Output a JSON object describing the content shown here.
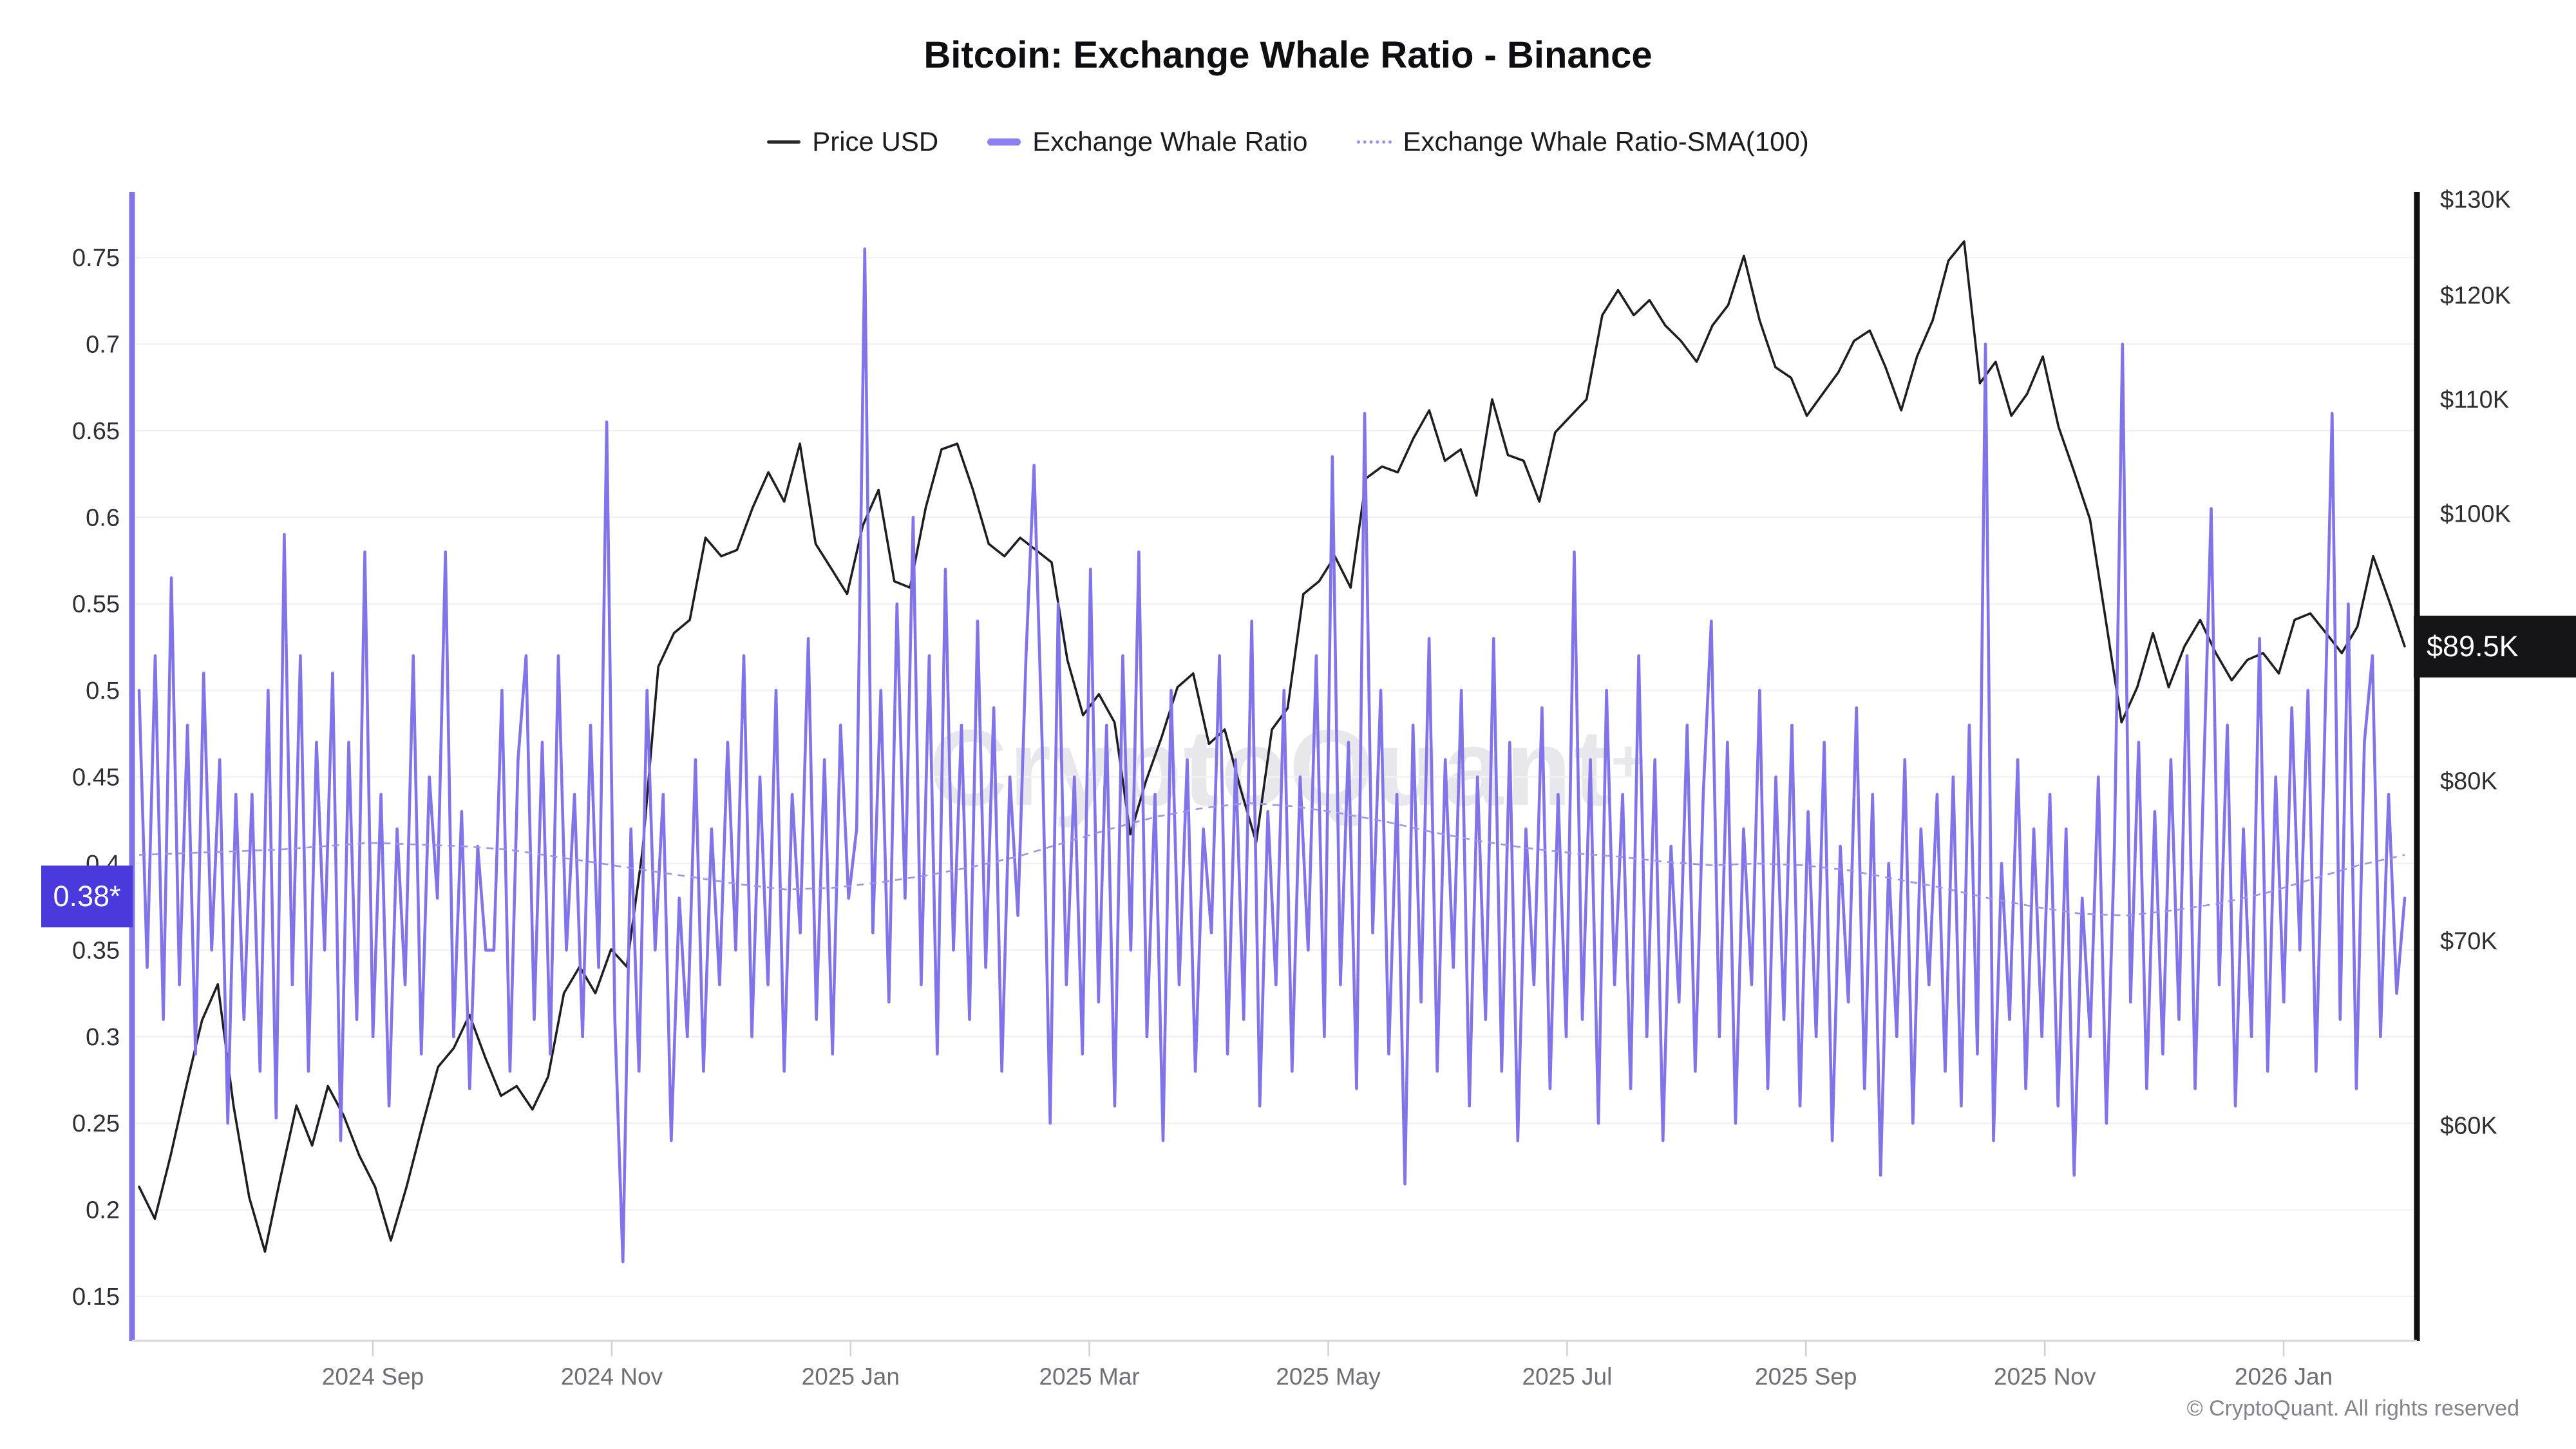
{
  "title": "Bitcoin: Exchange Whale Ratio - Binance",
  "legend": {
    "items": [
      {
        "label": "Price USD",
        "color": "#26262c",
        "style": "solid-thin"
      },
      {
        "label": "Exchange Whale Ratio",
        "color": "#8c7ff0",
        "style": "solid-thick"
      },
      {
        "label": "Exchange Whale Ratio-SMA(100)",
        "color": "#9d92f2",
        "style": "dotted"
      }
    ]
  },
  "watermark": {
    "text": "CryptoQuant",
    "mark": "+"
  },
  "copyright": "© CryptoQuant. All rights reserved",
  "badges": {
    "ratio_last": {
      "text": "0.38*",
      "value": 0.38,
      "bg": "#4a39dd"
    },
    "price_last": {
      "text": "$89.5K",
      "value_usd_k": 89.5,
      "bg": "#141417"
    }
  },
  "y_left_axis": {
    "title": "Exchange Whale Ratio",
    "ticks": [
      0.75,
      0.7,
      0.65,
      0.6,
      0.55,
      0.5,
      0.45,
      0.4,
      0.35,
      0.3,
      0.25,
      0.2,
      0.15
    ],
    "labels": [
      "0.75",
      "0.7",
      "0.65",
      "0.6",
      "0.55",
      "0.5",
      "0.45",
      "0.4",
      "0.35",
      "0.3",
      "0.25",
      "0.2",
      "0.15"
    ],
    "axis_color": "#8174e8"
  },
  "y_right_axis": {
    "title": "Price USD",
    "scale": "log",
    "ticks": [
      {
        "label": "$130K",
        "value": 130
      },
      {
        "label": "$120K",
        "value": 120
      },
      {
        "label": "$110K",
        "value": 110
      },
      {
        "label": "$100K",
        "value": 100
      },
      {
        "label": "$80K",
        "value": 80
      },
      {
        "label": "$70K",
        "value": 70
      },
      {
        "label": "$60K",
        "value": 60
      }
    ],
    "axis_color": "#0f0f12"
  },
  "x_axis": {
    "labels": [
      {
        "label": "2024 Sep",
        "month_index": 2
      },
      {
        "label": "2024 Nov",
        "month_index": 4
      },
      {
        "label": "2025 Jan",
        "month_index": 6
      },
      {
        "label": "2025 Mar",
        "month_index": 8
      },
      {
        "label": "2025 May",
        "month_index": 10
      },
      {
        "label": "2025 Jul",
        "month_index": 12
      },
      {
        "label": "2025 Sep",
        "month_index": 14
      },
      {
        "label": "2025 Nov",
        "month_index": 16
      },
      {
        "label": "2026 Jan",
        "month_index": 18
      }
    ]
  },
  "chart_data": {
    "type": "line",
    "title": "Bitcoin: Exchange Whale Ratio - Binance",
    "x_domain": {
      "start": "2024-07",
      "end": "2026-02"
    },
    "grid": "horizontal-only",
    "legend_position": "top-center",
    "y_left": {
      "min": 0.15,
      "max": 0.78
    },
    "y_right": {
      "min_usd_k": 55,
      "max_usd_k": 131,
      "scale": "log"
    },
    "last_values": {
      "exchange_whale_ratio": 0.38,
      "price_usd_k": 89.5
    },
    "series": [
      {
        "name": "Price USD",
        "axis": "right",
        "unit": "USD thousands",
        "color": "#1d1d24",
        "values": [
          57.0,
          55.5,
          58.5,
          62.0,
          65.5,
          67.5,
          61.0,
          56.5,
          54.0,
          57.5,
          61.0,
          59.0,
          62.0,
          60.5,
          58.5,
          57.0,
          54.5,
          57.0,
          60.0,
          63.0,
          64.0,
          65.8,
          63.5,
          61.5,
          62.0,
          60.8,
          62.5,
          67.0,
          68.5,
          67.0,
          69.5,
          68.5,
          75.5,
          88.0,
          90.5,
          91.5,
          98.0,
          96.5,
          97.0,
          100.5,
          103.5,
          101.0,
          106.0,
          97.5,
          95.5,
          93.5,
          99.0,
          102.0,
          94.5,
          94.0,
          100.5,
          105.5,
          106.0,
          102.0,
          97.5,
          96.5,
          98.0,
          97.0,
          96.0,
          88.5,
          84.5,
          86.0,
          84.0,
          76.5,
          80.0,
          83.0,
          86.5,
          87.5,
          82.5,
          83.5,
          79.5,
          76.0,
          83.5,
          85.0,
          93.5,
          94.5,
          96.5,
          94.0,
          103.0,
          104.0,
          103.5,
          106.5,
          109.0,
          104.5,
          105.5,
          101.5,
          110.0,
          105.0,
          104.5,
          101.0,
          107.0,
          108.5,
          110.0,
          118.0,
          120.5,
          118.0,
          119.5,
          117.0,
          115.5,
          113.5,
          117.0,
          119.0,
          124.0,
          117.5,
          113.0,
          112.0,
          108.5,
          110.5,
          112.5,
          115.5,
          116.5,
          113.0,
          109.0,
          114.0,
          117.5,
          123.5,
          125.5,
          111.5,
          113.5,
          108.5,
          110.5,
          114.0,
          107.5,
          103.5,
          99.5,
          91.5,
          84.0,
          86.5,
          90.5,
          86.5,
          89.5,
          91.5,
          89.0,
          87.0,
          88.5,
          89.0,
          87.5,
          91.5,
          92.0,
          90.5,
          89.0,
          91.0,
          96.5,
          93.0,
          89.5
        ]
      },
      {
        "name": "Exchange Whale Ratio",
        "axis": "left",
        "color": "#8174e8",
        "values": [
          0.5,
          0.34,
          0.52,
          0.31,
          0.565,
          0.33,
          0.48,
          0.29,
          0.51,
          0.35,
          0.46,
          0.25,
          0.44,
          0.31,
          0.44,
          0.28,
          0.5,
          0.253,
          0.59,
          0.33,
          0.52,
          0.28,
          0.47,
          0.35,
          0.51,
          0.24,
          0.47,
          0.31,
          0.58,
          0.3,
          0.44,
          0.26,
          0.42,
          0.33,
          0.52,
          0.29,
          0.45,
          0.38,
          0.58,
          0.3,
          0.43,
          0.27,
          0.41,
          0.35,
          0.35,
          0.5,
          0.28,
          0.46,
          0.52,
          0.31,
          0.47,
          0.29,
          0.52,
          0.35,
          0.44,
          0.3,
          0.48,
          0.34,
          0.655,
          0.31,
          0.17,
          0.42,
          0.28,
          0.5,
          0.35,
          0.44,
          0.24,
          0.38,
          0.3,
          0.46,
          0.28,
          0.42,
          0.33,
          0.47,
          0.35,
          0.52,
          0.3,
          0.45,
          0.33,
          0.5,
          0.28,
          0.44,
          0.36,
          0.53,
          0.31,
          0.46,
          0.29,
          0.48,
          0.38,
          0.42,
          0.755,
          0.36,
          0.5,
          0.32,
          0.55,
          0.38,
          0.6,
          0.33,
          0.52,
          0.29,
          0.57,
          0.35,
          0.48,
          0.31,
          0.54,
          0.34,
          0.49,
          0.28,
          0.45,
          0.37,
          0.52,
          0.63,
          0.47,
          0.25,
          0.55,
          0.33,
          0.45,
          0.29,
          0.57,
          0.32,
          0.48,
          0.26,
          0.52,
          0.35,
          0.58,
          0.3,
          0.44,
          0.24,
          0.5,
          0.33,
          0.46,
          0.28,
          0.42,
          0.36,
          0.52,
          0.29,
          0.46,
          0.31,
          0.54,
          0.26,
          0.43,
          0.33,
          0.5,
          0.28,
          0.45,
          0.35,
          0.52,
          0.3,
          0.635,
          0.33,
          0.47,
          0.27,
          0.66,
          0.36,
          0.5,
          0.29,
          0.44,
          0.215,
          0.48,
          0.32,
          0.53,
          0.28,
          0.46,
          0.34,
          0.5,
          0.26,
          0.45,
          0.31,
          0.53,
          0.28,
          0.47,
          0.24,
          0.42,
          0.33,
          0.49,
          0.27,
          0.44,
          0.3,
          0.58,
          0.31,
          0.46,
          0.25,
          0.5,
          0.33,
          0.44,
          0.27,
          0.52,
          0.3,
          0.46,
          0.24,
          0.41,
          0.32,
          0.48,
          0.28,
          0.44,
          0.54,
          0.3,
          0.47,
          0.25,
          0.42,
          0.33,
          0.5,
          0.27,
          0.45,
          0.31,
          0.48,
          0.26,
          0.43,
          0.3,
          0.47,
          0.24,
          0.41,
          0.32,
          0.49,
          0.27,
          0.44,
          0.22,
          0.4,
          0.3,
          0.46,
          0.25,
          0.42,
          0.33,
          0.44,
          0.28,
          0.45,
          0.26,
          0.48,
          0.29,
          0.7,
          0.24,
          0.4,
          0.31,
          0.46,
          0.27,
          0.42,
          0.3,
          0.44,
          0.26,
          0.42,
          0.22,
          0.38,
          0.3,
          0.45,
          0.25,
          0.41,
          0.7,
          0.32,
          0.47,
          0.27,
          0.43,
          0.29,
          0.46,
          0.31,
          0.52,
          0.27,
          0.44,
          0.605,
          0.33,
          0.48,
          0.26,
          0.42,
          0.3,
          0.53,
          0.28,
          0.45,
          0.32,
          0.49,
          0.35,
          0.5,
          0.28,
          0.46,
          0.66,
          0.31,
          0.55,
          0.27,
          0.47,
          0.52,
          0.3,
          0.44,
          0.325,
          0.38
        ]
      },
      {
        "name": "Exchange Whale Ratio-SMA(100)",
        "axis": "left",
        "color": "#9d92f2",
        "style": "dashed",
        "values": [
          0.405,
          0.406,
          0.407,
          0.408,
          0.41,
          0.412,
          0.411,
          0.41,
          0.408,
          0.404,
          0.4,
          0.396,
          0.392,
          0.388,
          0.385,
          0.386,
          0.389,
          0.393,
          0.398,
          0.404,
          0.412,
          0.42,
          0.427,
          0.432,
          0.435,
          0.433,
          0.429,
          0.424,
          0.418,
          0.413,
          0.409,
          0.406,
          0.404,
          0.401,
          0.399,
          0.4,
          0.399,
          0.396,
          0.391,
          0.386,
          0.38,
          0.375,
          0.371,
          0.37,
          0.373,
          0.377,
          0.383,
          0.391,
          0.399,
          0.405
        ]
      }
    ]
  }
}
